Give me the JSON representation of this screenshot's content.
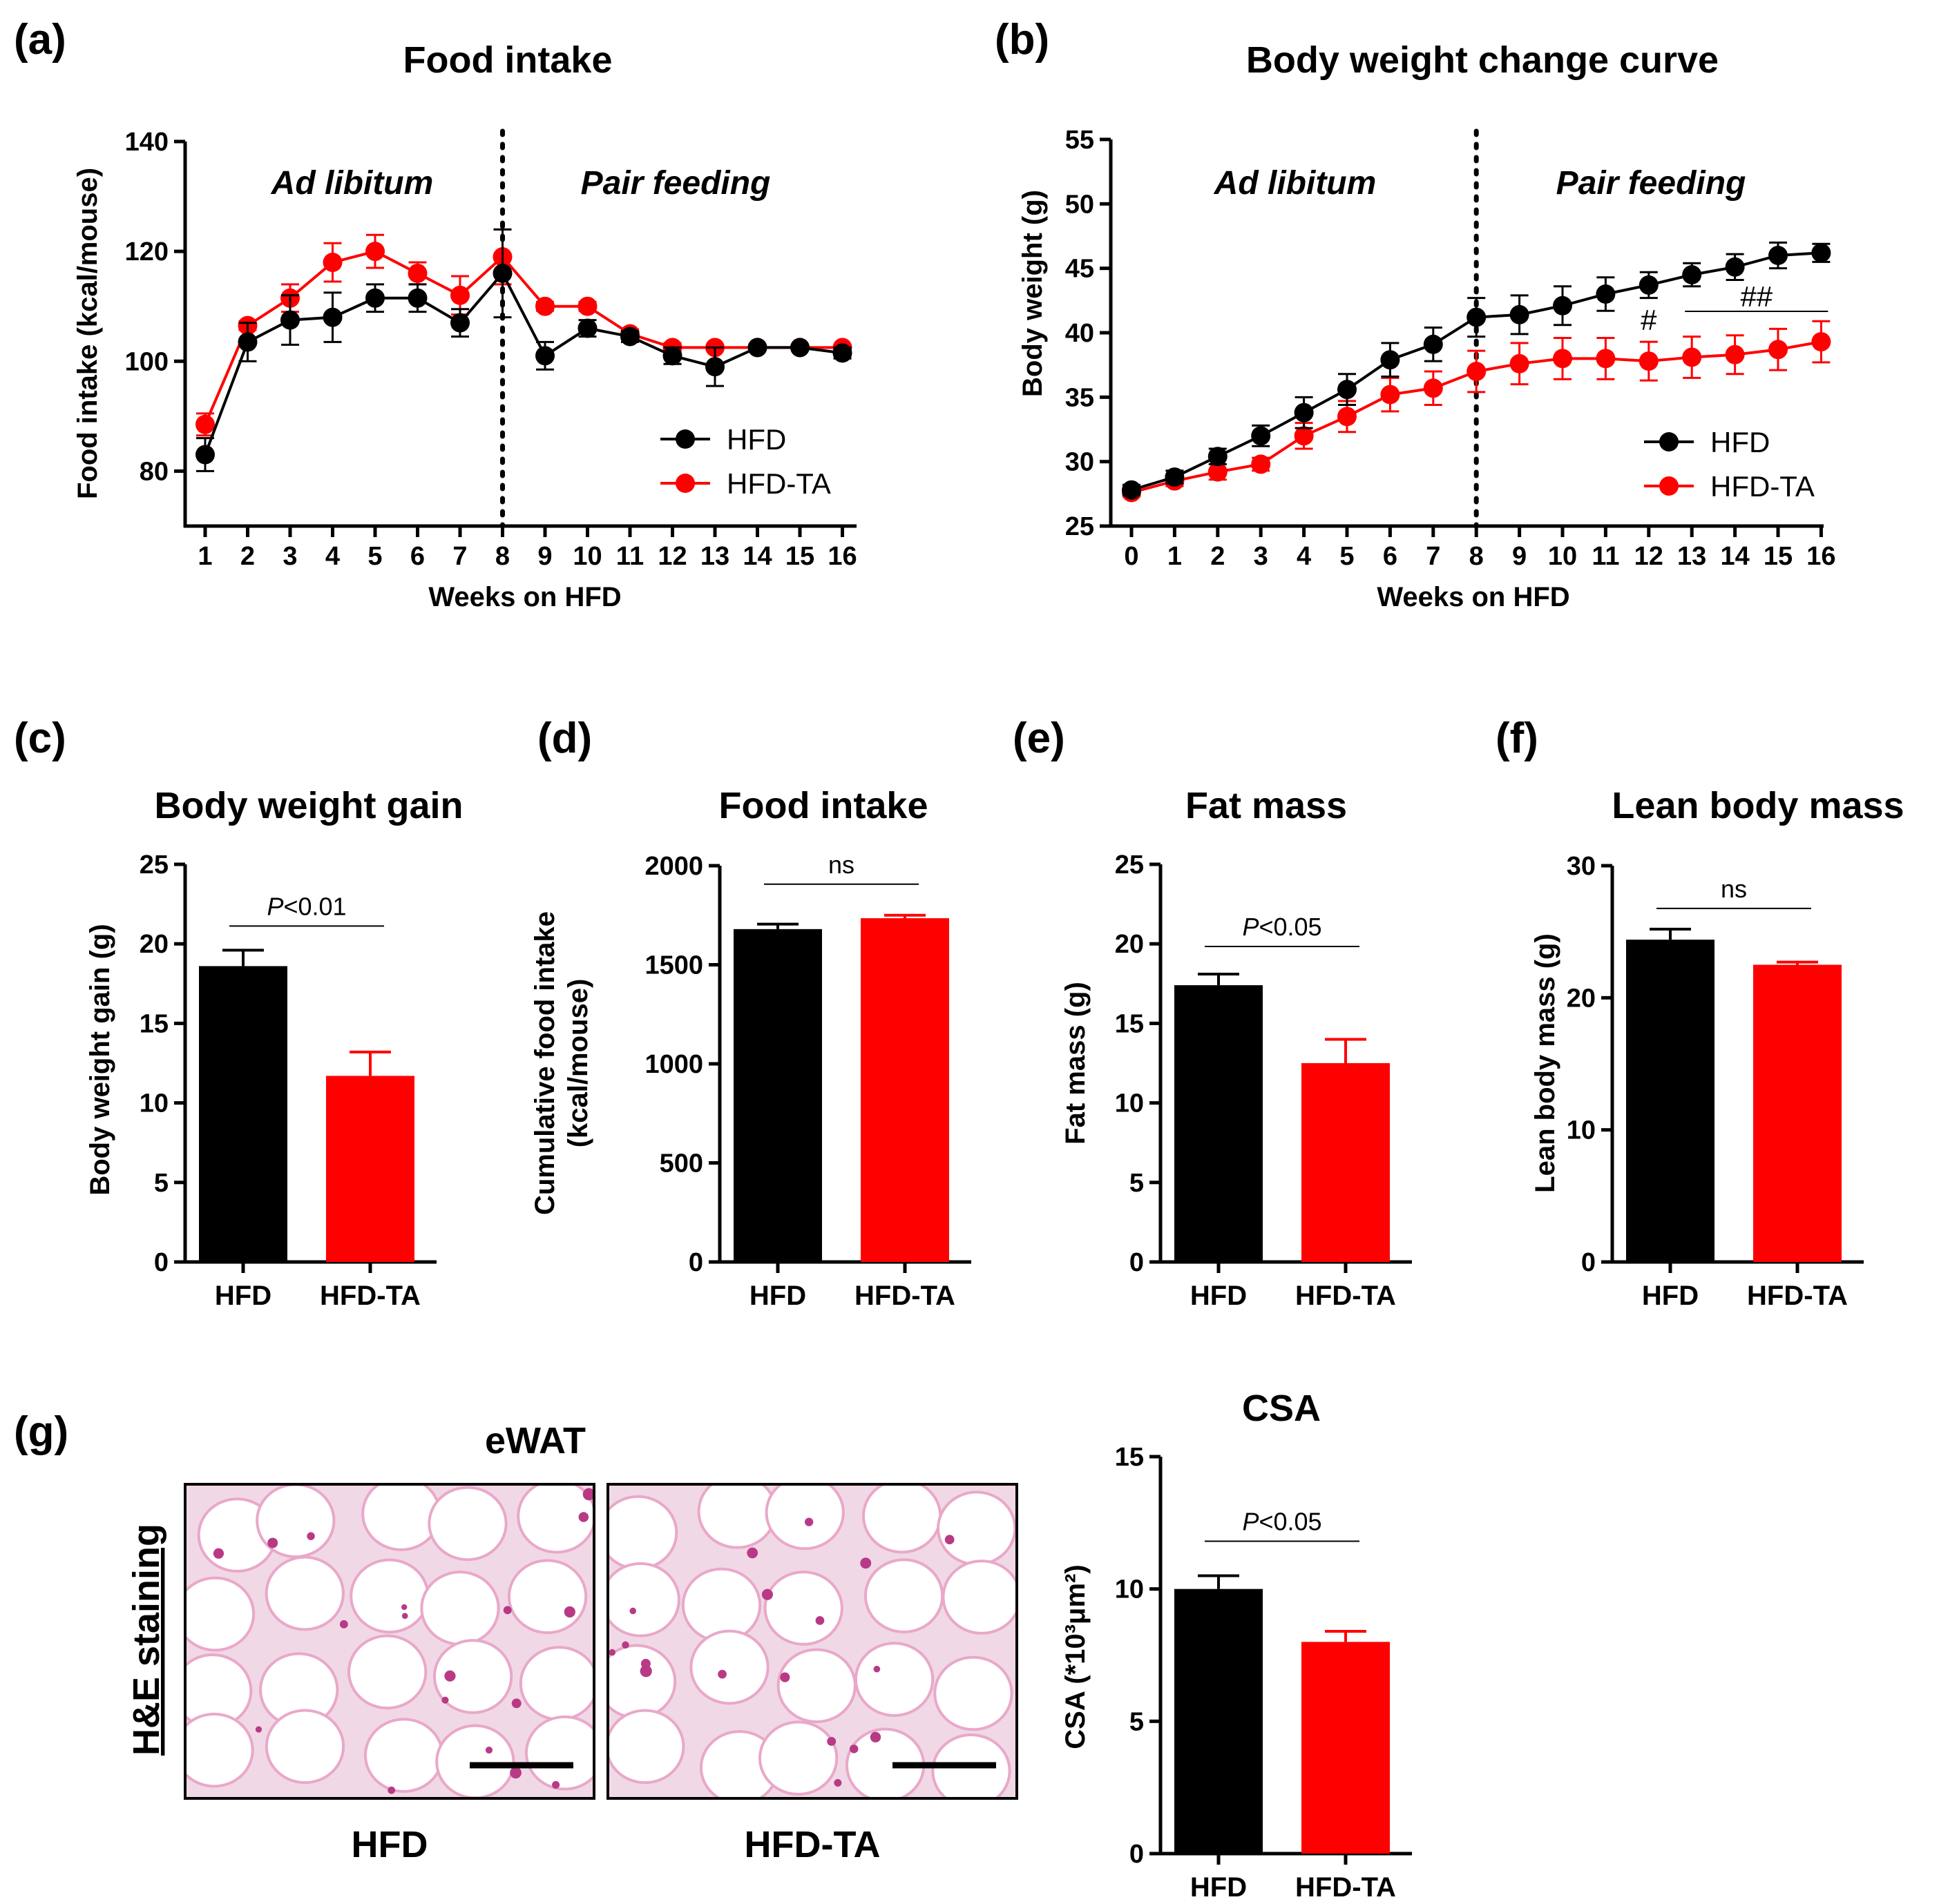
{
  "colors": {
    "hfd": "#000000",
    "hfdta": "#ff0000",
    "axis": "#000000"
  },
  "chart_data": [
    {
      "id": "a",
      "panel_label": "(a)",
      "type": "line",
      "title": "Food intake",
      "xlabel": "Weeks on HFD",
      "ylabel": "Food intake (kcal/mouse)",
      "ylim": [
        70,
        140
      ],
      "yticks": [
        80,
        100,
        120,
        140
      ],
      "x": [
        1,
        2,
        3,
        4,
        5,
        6,
        7,
        8,
        9,
        10,
        11,
        12,
        13,
        14,
        15,
        16
      ],
      "xticks": [
        "1",
        "2",
        "3",
        "4",
        "5",
        "6",
        "7",
        "8",
        "9",
        "10",
        "11",
        "12",
        "13",
        "14",
        "15",
        "16"
      ],
      "divider_x": 8,
      "phase_labels": [
        "Ad libitum",
        "Pair feeding"
      ],
      "series": [
        {
          "name": "HFD",
          "color": "#000000",
          "values": [
            83,
            103.5,
            107.5,
            108,
            111.5,
            111.5,
            107,
            116,
            101,
            106,
            104.5,
            101,
            99,
            102.5,
            102.5,
            101.5
          ],
          "errors": [
            3,
            3.5,
            4.5,
            4.5,
            2.5,
            2.5,
            2.5,
            8,
            2.5,
            1.5,
            1,
            1.5,
            3.5,
            0.5,
            0.5,
            1
          ]
        },
        {
          "name": "HFD-TA",
          "color": "#ff0000",
          "values": [
            88.5,
            106.5,
            111.5,
            118,
            120,
            116,
            112,
            119,
            110,
            110,
            105,
            102.5,
            102.5,
            102.5,
            102.5,
            102.5
          ],
          "errors": [
            2,
            0.8,
            2.5,
            3.5,
            3,
            2,
            3.5,
            5,
            0.8,
            0.8,
            0.8,
            0.8,
            0.5,
            0.5,
            0.5,
            0.5
          ]
        }
      ],
      "legend": [
        "HFD",
        "HFD-TA"
      ]
    },
    {
      "id": "b",
      "panel_label": "(b)",
      "type": "line",
      "title": "Body weight change curve",
      "xlabel": "Weeks on HFD",
      "ylabel": "Body weight (g)",
      "ylim": [
        25,
        55
      ],
      "yticks": [
        25,
        30,
        35,
        40,
        45,
        50,
        55
      ],
      "x": [
        0,
        1,
        2,
        3,
        4,
        5,
        6,
        7,
        8,
        9,
        10,
        11,
        12,
        13,
        14,
        15,
        16
      ],
      "xticks": [
        "0",
        "1",
        "2",
        "3",
        "4",
        "5",
        "6",
        "7",
        "8",
        "9",
        "10",
        "11",
        "12",
        "13",
        "14",
        "15",
        "16"
      ],
      "divider_x": 8,
      "phase_labels": [
        "Ad libitum",
        "Pair feeding"
      ],
      "series": [
        {
          "name": "HFD",
          "color": "#000000",
          "values": [
            27.8,
            28.8,
            30.4,
            32,
            33.8,
            35.6,
            37.9,
            39.1,
            41.2,
            41.4,
            42.1,
            43,
            43.7,
            44.5,
            45.1,
            46,
            46.2
          ],
          "errors": [
            0.4,
            0.5,
            0.6,
            0.8,
            1.2,
            1.2,
            1.3,
            1.3,
            1.5,
            1.5,
            1.5,
            1.3,
            1,
            0.9,
            1,
            1,
            0.7
          ]
        },
        {
          "name": "HFD-TA",
          "color": "#ff0000",
          "values": [
            27.6,
            28.5,
            29.2,
            29.8,
            32,
            33.5,
            35.2,
            35.7,
            37,
            37.6,
            38,
            38,
            37.8,
            38.1,
            38.3,
            38.7,
            39.3
          ],
          "errors": [
            0.3,
            0.4,
            0.6,
            0.5,
            1,
            1.2,
            1.3,
            1.3,
            1.6,
            1.6,
            1.6,
            1.6,
            1.5,
            1.6,
            1.5,
            1.6,
            1.6
          ]
        }
      ],
      "legend": [
        "HFD",
        "HFD-TA"
      ],
      "annotations": [
        {
          "text": "#",
          "x": 12
        },
        {
          "text": "##",
          "x_start": 13,
          "x_end": 16
        }
      ]
    },
    {
      "id": "c",
      "panel_label": "(c)",
      "type": "bar",
      "title": "Body weight gain",
      "ylabel": "Body weight gain (g)",
      "ylim": [
        0,
        25
      ],
      "yticks": [
        0,
        5,
        10,
        15,
        20,
        25
      ],
      "categories": [
        "HFD",
        "HFD-TA"
      ],
      "values": [
        18.6,
        11.7
      ],
      "errors": [
        1,
        1.5
      ],
      "annotation": {
        "italic": "P",
        "rest": "<0.01"
      }
    },
    {
      "id": "d",
      "panel_label": "(d)",
      "type": "bar",
      "title": "Food intake",
      "ylabel": "Cumulative food intake",
      "ylabel2": "(kcal/mouse)",
      "ylim": [
        0,
        2000
      ],
      "yticks": [
        0,
        500,
        1000,
        1500,
        2000
      ],
      "categories": [
        "HFD",
        "HFD-TA"
      ],
      "values": [
        1680,
        1735
      ],
      "errors": [
        25,
        15
      ],
      "annotation": {
        "italic": "",
        "rest": "ns"
      }
    },
    {
      "id": "e",
      "panel_label": "(e)",
      "type": "bar",
      "title": "Fat mass",
      "ylabel": "Fat mass (g)",
      "ylim": [
        0,
        25
      ],
      "yticks": [
        0,
        5,
        10,
        15,
        20,
        25
      ],
      "categories": [
        "HFD",
        "HFD-TA"
      ],
      "values": [
        17.4,
        12.5
      ],
      "errors": [
        0.7,
        1.5
      ],
      "annotation": {
        "italic": "P",
        "rest": "<0.05"
      }
    },
    {
      "id": "f",
      "panel_label": "(f)",
      "type": "bar",
      "title": "Lean body mass",
      "ylabel": "Lean body mass (g)",
      "ylim": [
        0,
        30
      ],
      "yticks": [
        0,
        10,
        20,
        30
      ],
      "categories": [
        "HFD",
        "HFD-TA"
      ],
      "values": [
        24.4,
        22.5
      ],
      "errors": [
        0.8,
        0.2
      ],
      "annotation": {
        "italic": "",
        "rest": "ns"
      }
    },
    {
      "id": "g",
      "panel_label": "",
      "type": "bar",
      "title": "CSA",
      "ylabel": "CSA (*10³μm²)",
      "ylim": [
        0,
        15
      ],
      "yticks": [
        0,
        5,
        10,
        15
      ],
      "categories": [
        "HFD",
        "HFD-TA"
      ],
      "values": [
        10,
        8
      ],
      "errors": [
        0.5,
        0.4
      ],
      "annotation": {
        "italic": "P",
        "rest": "<0.05"
      }
    }
  ],
  "histology": {
    "panel_label": "(g)",
    "title": "eWAT",
    "side_label": "H&E staining",
    "images": [
      {
        "label": "HFD"
      },
      {
        "label": "HFD-TA"
      }
    ]
  }
}
